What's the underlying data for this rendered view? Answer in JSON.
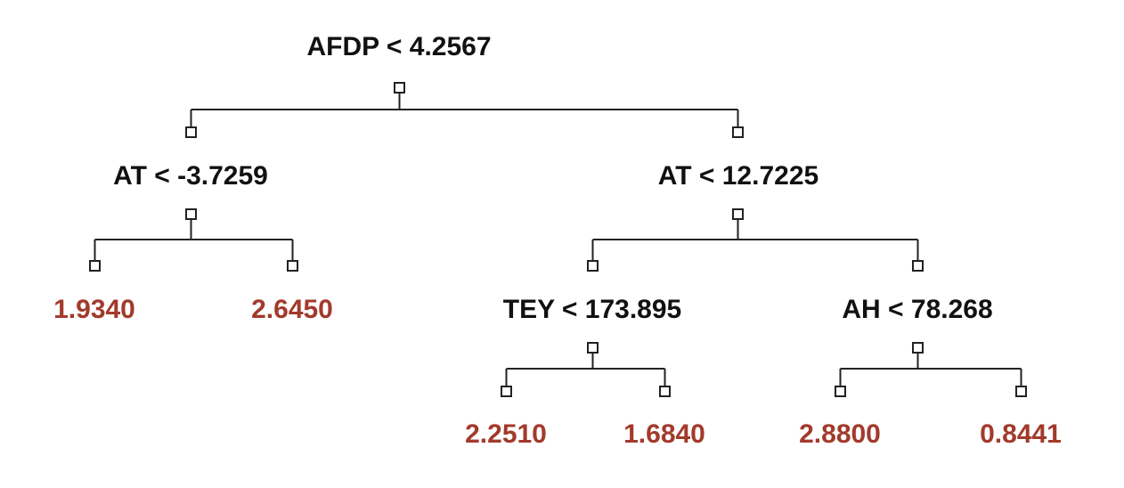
{
  "tree": {
    "root": {
      "label": "AFDP < 4.2567"
    },
    "left": {
      "label": "AT < -3.7259",
      "leaf_left": "1.9340",
      "leaf_right": "2.6450"
    },
    "right": {
      "label": "AT < 12.7225",
      "left": {
        "label": "TEY < 173.895",
        "leaf_left": "2.2510",
        "leaf_right": "1.6840"
      },
      "right": {
        "label": "AH < 78.268",
        "leaf_left": "2.8800",
        "leaf_right": "0.8441"
      }
    }
  },
  "colors": {
    "split_text": "#111111",
    "leaf_text": "#a23a2c",
    "lines": "#222222"
  }
}
